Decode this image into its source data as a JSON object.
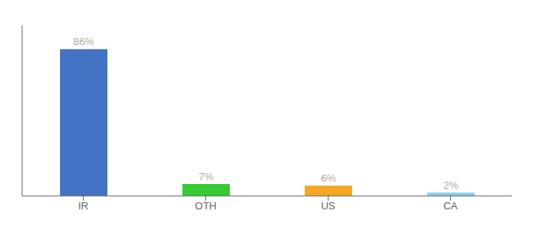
{
  "chart_data": {
    "type": "bar",
    "categories": [
      "IR",
      "OTH",
      "US",
      "CA"
    ],
    "values": [
      86,
      7,
      6,
      2
    ],
    "value_labels": [
      "86%",
      "7%",
      "6%",
      "2%"
    ],
    "colors": [
      "#4472c4",
      "#33cc33",
      "#f5a623",
      "#87ceeb"
    ],
    "ylim": [
      0,
      100
    ],
    "data_labels": true,
    "tick_labels": "x",
    "grid": false
  }
}
